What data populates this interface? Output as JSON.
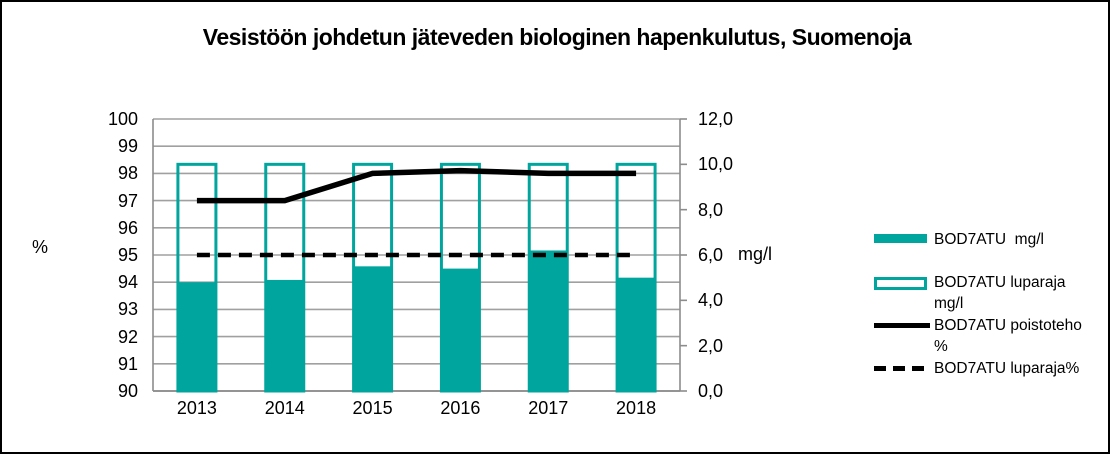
{
  "chart_data": {
    "type": "bar",
    "title": "Vesistöön johdetun jäteveden biologinen hapenkulutus, Suomenoja",
    "categories": [
      "2013",
      "2014",
      "2015",
      "2016",
      "2017",
      "2018"
    ],
    "left_axis": {
      "label": "%",
      "min": 90,
      "max": 100,
      "step": 1,
      "tick_labels": [
        "100",
        "99",
        "98",
        "97",
        "96",
        "95",
        "94",
        "93",
        "92",
        "91",
        "90"
      ]
    },
    "right_axis": {
      "label": "mg/l",
      "min": 0,
      "max": 12,
      "step": 2,
      "tick_labels": [
        "12,0",
        "10,0",
        "8,0",
        "6,0",
        "4,0",
        "2,0",
        "0,0"
      ]
    },
    "series": [
      {
        "name": "BOD7ATU  mg/l",
        "legend_lines": [
          "BOD7ATU  mg/l"
        ],
        "type": "bar",
        "axis": "right",
        "values": [
          4.8,
          4.9,
          5.5,
          5.4,
          6.2,
          5.0
        ]
      },
      {
        "name": "BOD7ATU luparaja mg/l",
        "legend_lines": [
          "BOD7ATU luparaja",
          "mg/l"
        ],
        "type": "bar-outline",
        "axis": "right",
        "values": [
          10.0,
          10.0,
          10.0,
          10.0,
          10.0,
          10.0
        ]
      },
      {
        "name": "BOD7ATU poistoteho %",
        "legend_lines": [
          "BOD7ATU poistoteho",
          "%"
        ],
        "type": "line",
        "axis": "left",
        "values": [
          97.0,
          97.0,
          98.0,
          98.1,
          98.0,
          98.0
        ]
      },
      {
        "name": "BOD7ATU luparaja%",
        "legend_lines": [
          "BOD7ATU luparaja%"
        ],
        "type": "line-dashed",
        "axis": "left",
        "values": [
          95.0,
          95.0,
          95.0,
          95.0,
          95.0,
          95.0
        ]
      }
    ],
    "colors": {
      "bar_fill": "#00A59D",
      "bar_outline": "#00A59D",
      "line": "#000000",
      "line_dashed": "#000000",
      "gridline": "#A0A0A0",
      "axis": "#8C8C8C"
    },
    "grid": "horizontal",
    "legend_position": "right"
  }
}
